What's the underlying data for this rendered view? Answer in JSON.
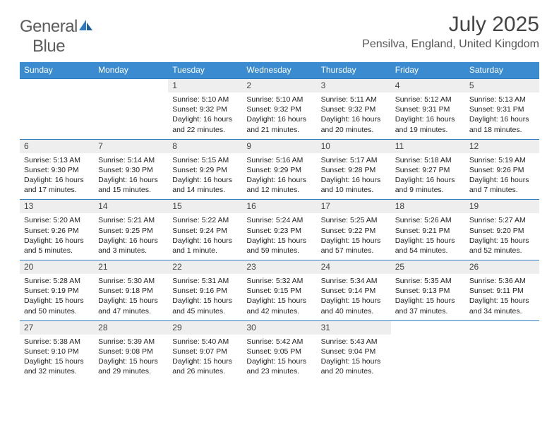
{
  "logo": {
    "text1": "General",
    "text2": "Blue"
  },
  "title": "July 2025",
  "location": "Pensilva, England, United Kingdom",
  "colors": {
    "header_bg": "#3a8bd0",
    "header_text": "#ffffff",
    "daynum_bg": "#eeeeee",
    "rule": "#2f7bbf",
    "logo_gray": "#5c5c5c",
    "logo_blue": "#2f7bbf"
  },
  "day_headers": [
    "Sunday",
    "Monday",
    "Tuesday",
    "Wednesday",
    "Thursday",
    "Friday",
    "Saturday"
  ],
  "weeks": [
    [
      null,
      null,
      {
        "n": "1",
        "sunrise": "5:10 AM",
        "sunset": "9:32 PM",
        "daylight": "16 hours and 22 minutes."
      },
      {
        "n": "2",
        "sunrise": "5:10 AM",
        "sunset": "9:32 PM",
        "daylight": "16 hours and 21 minutes."
      },
      {
        "n": "3",
        "sunrise": "5:11 AM",
        "sunset": "9:32 PM",
        "daylight": "16 hours and 20 minutes."
      },
      {
        "n": "4",
        "sunrise": "5:12 AM",
        "sunset": "9:31 PM",
        "daylight": "16 hours and 19 minutes."
      },
      {
        "n": "5",
        "sunrise": "5:13 AM",
        "sunset": "9:31 PM",
        "daylight": "16 hours and 18 minutes."
      }
    ],
    [
      {
        "n": "6",
        "sunrise": "5:13 AM",
        "sunset": "9:30 PM",
        "daylight": "16 hours and 17 minutes."
      },
      {
        "n": "7",
        "sunrise": "5:14 AM",
        "sunset": "9:30 PM",
        "daylight": "16 hours and 15 minutes."
      },
      {
        "n": "8",
        "sunrise": "5:15 AM",
        "sunset": "9:29 PM",
        "daylight": "16 hours and 14 minutes."
      },
      {
        "n": "9",
        "sunrise": "5:16 AM",
        "sunset": "9:29 PM",
        "daylight": "16 hours and 12 minutes."
      },
      {
        "n": "10",
        "sunrise": "5:17 AM",
        "sunset": "9:28 PM",
        "daylight": "16 hours and 10 minutes."
      },
      {
        "n": "11",
        "sunrise": "5:18 AM",
        "sunset": "9:27 PM",
        "daylight": "16 hours and 9 minutes."
      },
      {
        "n": "12",
        "sunrise": "5:19 AM",
        "sunset": "9:26 PM",
        "daylight": "16 hours and 7 minutes."
      }
    ],
    [
      {
        "n": "13",
        "sunrise": "5:20 AM",
        "sunset": "9:26 PM",
        "daylight": "16 hours and 5 minutes."
      },
      {
        "n": "14",
        "sunrise": "5:21 AM",
        "sunset": "9:25 PM",
        "daylight": "16 hours and 3 minutes."
      },
      {
        "n": "15",
        "sunrise": "5:22 AM",
        "sunset": "9:24 PM",
        "daylight": "16 hours and 1 minute."
      },
      {
        "n": "16",
        "sunrise": "5:24 AM",
        "sunset": "9:23 PM",
        "daylight": "15 hours and 59 minutes."
      },
      {
        "n": "17",
        "sunrise": "5:25 AM",
        "sunset": "9:22 PM",
        "daylight": "15 hours and 57 minutes."
      },
      {
        "n": "18",
        "sunrise": "5:26 AM",
        "sunset": "9:21 PM",
        "daylight": "15 hours and 54 minutes."
      },
      {
        "n": "19",
        "sunrise": "5:27 AM",
        "sunset": "9:20 PM",
        "daylight": "15 hours and 52 minutes."
      }
    ],
    [
      {
        "n": "20",
        "sunrise": "5:28 AM",
        "sunset": "9:19 PM",
        "daylight": "15 hours and 50 minutes."
      },
      {
        "n": "21",
        "sunrise": "5:30 AM",
        "sunset": "9:18 PM",
        "daylight": "15 hours and 47 minutes."
      },
      {
        "n": "22",
        "sunrise": "5:31 AM",
        "sunset": "9:16 PM",
        "daylight": "15 hours and 45 minutes."
      },
      {
        "n": "23",
        "sunrise": "5:32 AM",
        "sunset": "9:15 PM",
        "daylight": "15 hours and 42 minutes."
      },
      {
        "n": "24",
        "sunrise": "5:34 AM",
        "sunset": "9:14 PM",
        "daylight": "15 hours and 40 minutes."
      },
      {
        "n": "25",
        "sunrise": "5:35 AM",
        "sunset": "9:13 PM",
        "daylight": "15 hours and 37 minutes."
      },
      {
        "n": "26",
        "sunrise": "5:36 AM",
        "sunset": "9:11 PM",
        "daylight": "15 hours and 34 minutes."
      }
    ],
    [
      {
        "n": "27",
        "sunrise": "5:38 AM",
        "sunset": "9:10 PM",
        "daylight": "15 hours and 32 minutes."
      },
      {
        "n": "28",
        "sunrise": "5:39 AM",
        "sunset": "9:08 PM",
        "daylight": "15 hours and 29 minutes."
      },
      {
        "n": "29",
        "sunrise": "5:40 AM",
        "sunset": "9:07 PM",
        "daylight": "15 hours and 26 minutes."
      },
      {
        "n": "30",
        "sunrise": "5:42 AM",
        "sunset": "9:05 PM",
        "daylight": "15 hours and 23 minutes."
      },
      {
        "n": "31",
        "sunrise": "5:43 AM",
        "sunset": "9:04 PM",
        "daylight": "15 hours and 20 minutes."
      },
      null,
      null
    ]
  ],
  "labels": {
    "sunrise": "Sunrise:",
    "sunset": "Sunset:",
    "daylight": "Daylight:"
  }
}
